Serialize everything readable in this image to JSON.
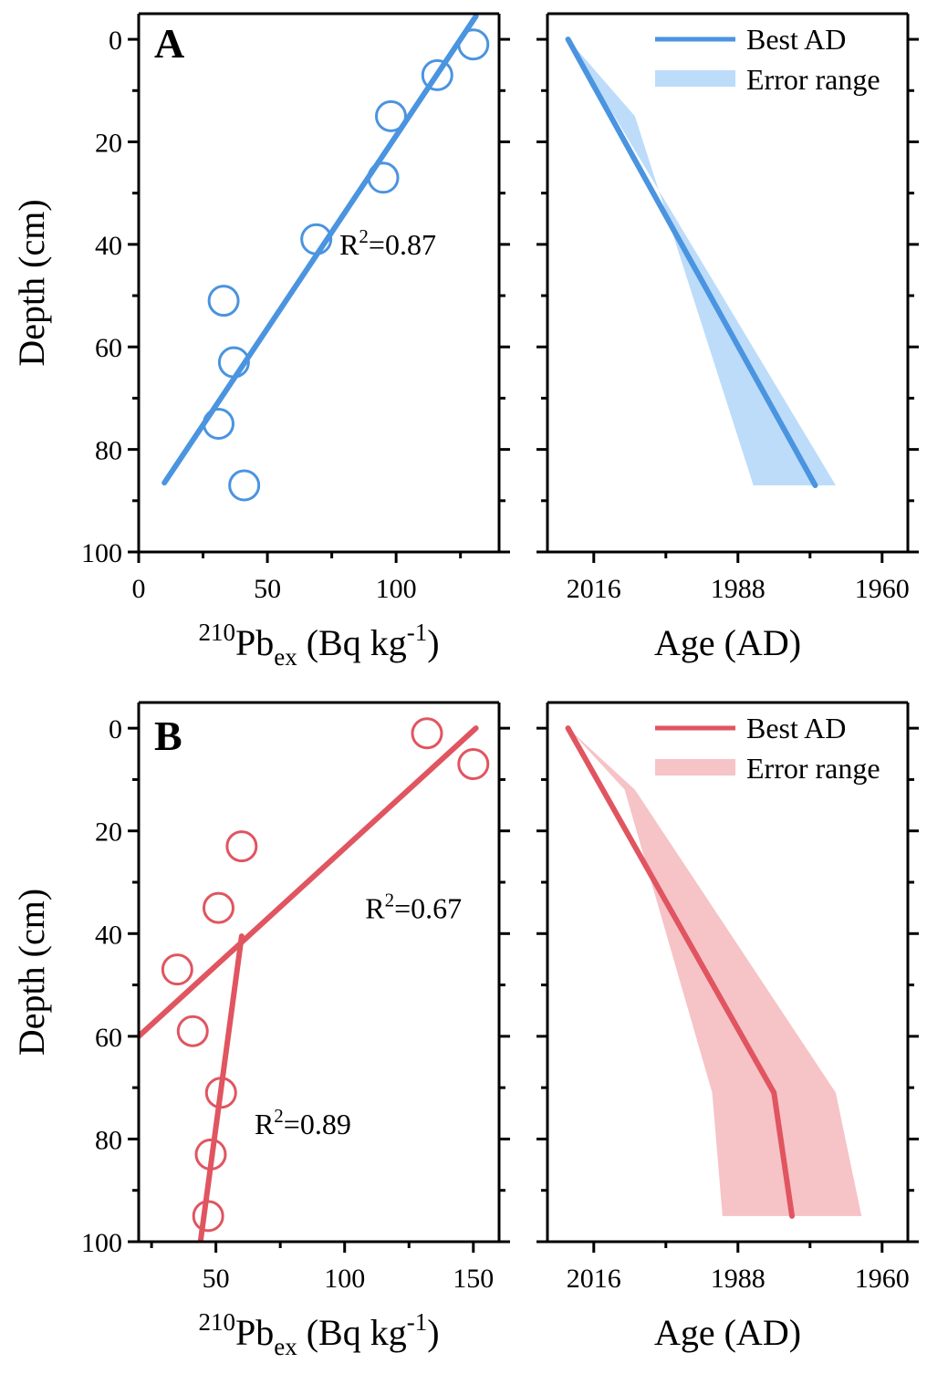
{
  "figure": {
    "ylabel": "Depth (cm)",
    "xlabel_left": {
      "sup": "210",
      "main": "Pb",
      "sub": "ex",
      "unit": "(Bq kg",
      "unit_sup": "-1",
      "close": ")"
    },
    "xlabel_right": "Age (AD)",
    "legend": {
      "best": "Best AD",
      "error": "Error range"
    }
  },
  "chart_data": [
    {
      "id": "A-left",
      "panel_letter": "A",
      "type": "scatter",
      "color": "#4a94e0",
      "ylabel": "Depth (cm)",
      "ylim": [
        -5,
        100
      ],
      "yticks": [
        0,
        20,
        40,
        60,
        80,
        100
      ],
      "xlim": [
        0,
        140
      ],
      "xticks": [
        0,
        50,
        100
      ],
      "points": [
        {
          "x": 130,
          "y": 1
        },
        {
          "x": 116,
          "y": 7
        },
        {
          "x": 98,
          "y": 15
        },
        {
          "x": 95,
          "y": 27
        },
        {
          "x": 69,
          "y": 39
        },
        {
          "x": 33,
          "y": 51
        },
        {
          "x": 37,
          "y": 63
        },
        {
          "x": 31,
          "y": 75
        },
        {
          "x": 41,
          "y": 87
        }
      ],
      "fit_lines": [
        {
          "x": [
            10,
            131
          ],
          "y": [
            86.5,
            -4.5
          ]
        }
      ],
      "annotations": [
        {
          "r2": "0.87",
          "x": 78,
          "y": 42
        }
      ]
    },
    {
      "id": "A-right",
      "type": "line",
      "color": "#4a94e0",
      "band_color": "#bcdcfa",
      "xlabel": "Age (AD)",
      "ylim": [
        -5,
        100
      ],
      "yticks": [
        0,
        20,
        40,
        60,
        80,
        100
      ],
      "xlim": [
        2025,
        1955
      ],
      "xticks": [
        2016,
        1988,
        1960
      ],
      "x_reversed": true,
      "best_ad": {
        "x": [
          2021,
          1973
        ],
        "y": [
          0,
          87
        ]
      },
      "error_range": {
        "x_left": [
          2021,
          2008,
          1985
        ],
        "x_right": [
          2021,
          2012,
          1969
        ],
        "y": [
          0,
          15,
          87
        ]
      },
      "legend": [
        "Best AD",
        "Error range"
      ]
    },
    {
      "id": "B-left",
      "panel_letter": "B",
      "type": "scatter",
      "color": "#e05560",
      "ylabel": "Depth (cm)",
      "ylim": [
        -5,
        100
      ],
      "yticks": [
        0,
        20,
        40,
        60,
        80,
        100
      ],
      "xlim": [
        20,
        160
      ],
      "xticks": [
        50,
        100,
        150
      ],
      "points": [
        {
          "x": 132,
          "y": 1
        },
        {
          "x": 150,
          "y": 7
        },
        {
          "x": 60,
          "y": 23
        },
        {
          "x": 51,
          "y": 35
        },
        {
          "x": 35,
          "y": 47
        },
        {
          "x": 41,
          "y": 59
        },
        {
          "x": 52,
          "y": 71
        },
        {
          "x": 48,
          "y": 83
        },
        {
          "x": 47,
          "y": 95
        }
      ],
      "fit_lines": [
        {
          "x": [
            20,
            151
          ],
          "y": [
            60,
            0
          ]
        },
        {
          "x": [
            60,
            44
          ],
          "y": [
            40.5,
            100
          ]
        }
      ],
      "annotations": [
        {
          "r2": "0.67",
          "x": 108,
          "y": 37
        },
        {
          "r2": "0.89",
          "x": 65,
          "y": 79
        }
      ]
    },
    {
      "id": "B-right",
      "type": "line",
      "color": "#e05560",
      "band_color": "#f6c3c7",
      "xlabel": "Age (AD)",
      "ylim": [
        -5,
        100
      ],
      "yticks": [
        0,
        20,
        40,
        60,
        80,
        100
      ],
      "xlim": [
        2025,
        1955
      ],
      "xticks": [
        2016,
        1988,
        1960
      ],
      "x_reversed": true,
      "best_ad": {
        "x": [
          2021,
          1981,
          1977.5
        ],
        "y": [
          0,
          71,
          95
        ]
      },
      "error_range": {
        "x_left": [
          2021,
          2010,
          1993,
          1991
        ],
        "x_right": [
          2021,
          2008,
          1969,
          1964
        ],
        "y": [
          0,
          12,
          71,
          95
        ]
      },
      "legend": [
        "Best AD",
        "Error range"
      ]
    }
  ]
}
